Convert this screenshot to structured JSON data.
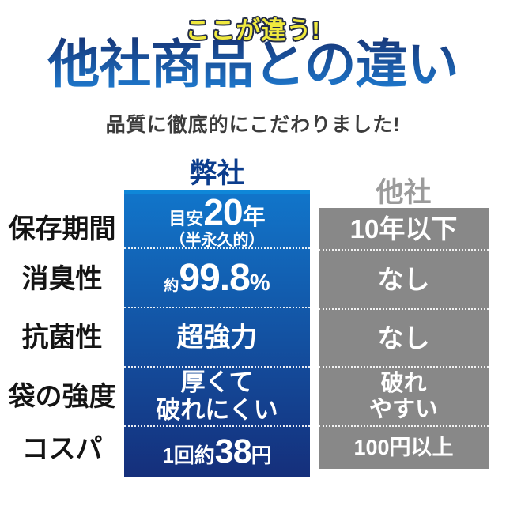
{
  "badge": {
    "text": "ここが違う!"
  },
  "title": {
    "text": "他社商品との違い"
  },
  "subtitle": {
    "text": "品質に徹底的にこだわりました!"
  },
  "table": {
    "our_header": "弊社",
    "their_header": "他社",
    "rows": [
      {
        "label": "保存期間",
        "ours": {
          "prefix": "目安",
          "big": "20",
          "suffix": "年",
          "note": "（半永久的）"
        },
        "theirs": {
          "text": "10年以下"
        }
      },
      {
        "label": "消臭性",
        "ours": {
          "prefix": "約",
          "big": "99.8",
          "suffix": "%"
        },
        "theirs": {
          "text": "なし"
        }
      },
      {
        "label": "抗菌性",
        "ours": {
          "text": "超強力"
        },
        "theirs": {
          "text": "なし"
        }
      },
      {
        "label": "袋の強度",
        "ours": {
          "line1": "厚くて",
          "line2": "破れにくい"
        },
        "theirs": {
          "line1": "破れ",
          "line2": "やすい"
        }
      },
      {
        "label": "コスパ",
        "ours": {
          "prefix": "1回約",
          "big": "38",
          "suffix": "円"
        },
        "theirs": {
          "text": "100円以上"
        }
      }
    ]
  },
  "colors": {
    "badge_fill": "#F0E93E",
    "badge_outline": "#232C48",
    "title_gradient_top": "#17397C",
    "title_gradient_bottom": "#1E79CE",
    "subtitle_text": "#3C3C3C",
    "our_header_text": "#0C3D8D",
    "their_header_text": "#9B9B9B",
    "our_column_top": "#1176CB",
    "our_column_bottom": "#152F7B",
    "our_column_highlight": "#0F87D8",
    "their_column": "#888888",
    "cell_text": "#FFFFFF",
    "row_label_text": "#141414"
  }
}
